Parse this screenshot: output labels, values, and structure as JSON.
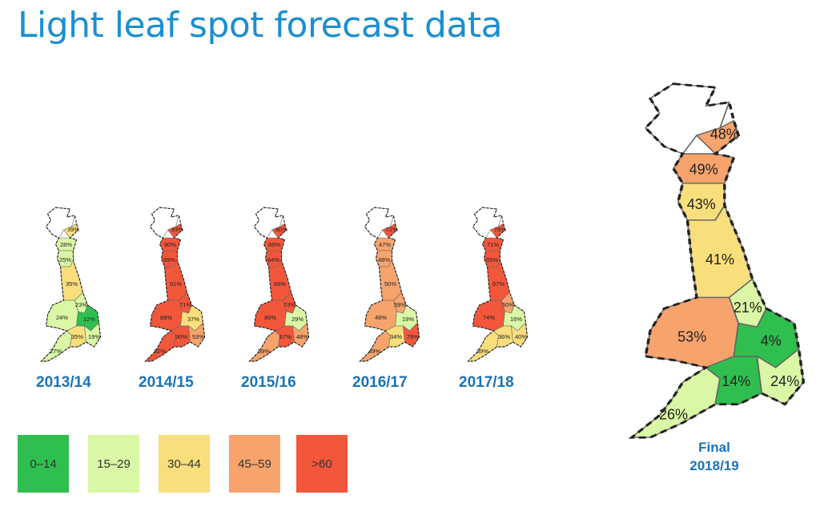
{
  "title": "Light leaf spot forecast data",
  "colors": {
    "c0": "#2fbf4f",
    "c1": "#d9f7a4",
    "c2": "#f9de7c",
    "c3": "#f7a36c",
    "c4": "#f2563b",
    "text_blue": "#1a73b8",
    "title_blue": "#1a8fd0"
  },
  "legend": [
    {
      "label": "0–14",
      "color": "#2fbf4f"
    },
    {
      "label": "15–29",
      "color": "#d9f7a4"
    },
    {
      "label": "30–44",
      "color": "#f9de7c"
    },
    {
      "label": "45–59",
      "color": "#f7a36c"
    },
    {
      "label": ">60",
      "color": "#f2563b"
    }
  ],
  "years": [
    {
      "year": "2013/14",
      "regions": {
        "nscot": "",
        "escot": "39%",
        "sscot": "28%",
        "nengl": "25%",
        "ne": "35%",
        "wales": "24%",
        "east": "23%",
        "eastA": "12%",
        "sw": "27%",
        "south": "35%",
        "se": "19%"
      }
    },
    {
      "year": "2014/15",
      "regions": {
        "nscot": "",
        "escot": "93%",
        "sscot": "90%",
        "nengl": "89%",
        "ne": "91%",
        "wales": "89%",
        "east": "71%",
        "eastA": "37%",
        "sw": "82%",
        "south": "90%",
        "se": "53%"
      }
    },
    {
      "year": "2015/16",
      "regions": {
        "nscot": "",
        "escot": "80%",
        "sscot": "69%",
        "nengl": "64%",
        "ne": "66%",
        "wales": "80%",
        "east": "73%",
        "eastA": "29%",
        "sw": "59%",
        "south": "67%",
        "se": "48%"
      }
    },
    {
      "year": "2016/17",
      "regions": {
        "nscot": "",
        "escot": "72%",
        "sscot": "47%",
        "nengl": "48%",
        "ne": "50%",
        "wales": "48%",
        "east": "59%",
        "eastA": "19%",
        "sw": "49%",
        "south": "34%",
        "se": "78%"
      }
    },
    {
      "year": "2017/18",
      "regions": {
        "nscot": "",
        "escot": "78%",
        "sscot": "71%",
        "nengl": "65%",
        "ne": "67%",
        "wales": "74%",
        "east": "50%",
        "eastA": "16%",
        "sw": "39%",
        "south": "36%",
        "se": "40%"
      }
    }
  ],
  "final": {
    "label_line1": "Final",
    "label_line2": "2018/19",
    "regions": {
      "nscot": "",
      "escot": "48%",
      "sscot": "49%",
      "nengl": "43%",
      "ne": "41%",
      "wales": "53%",
      "east": "21%",
      "eastA": "4%",
      "sw": "26%",
      "south": "14%",
      "se": "24%"
    }
  }
}
